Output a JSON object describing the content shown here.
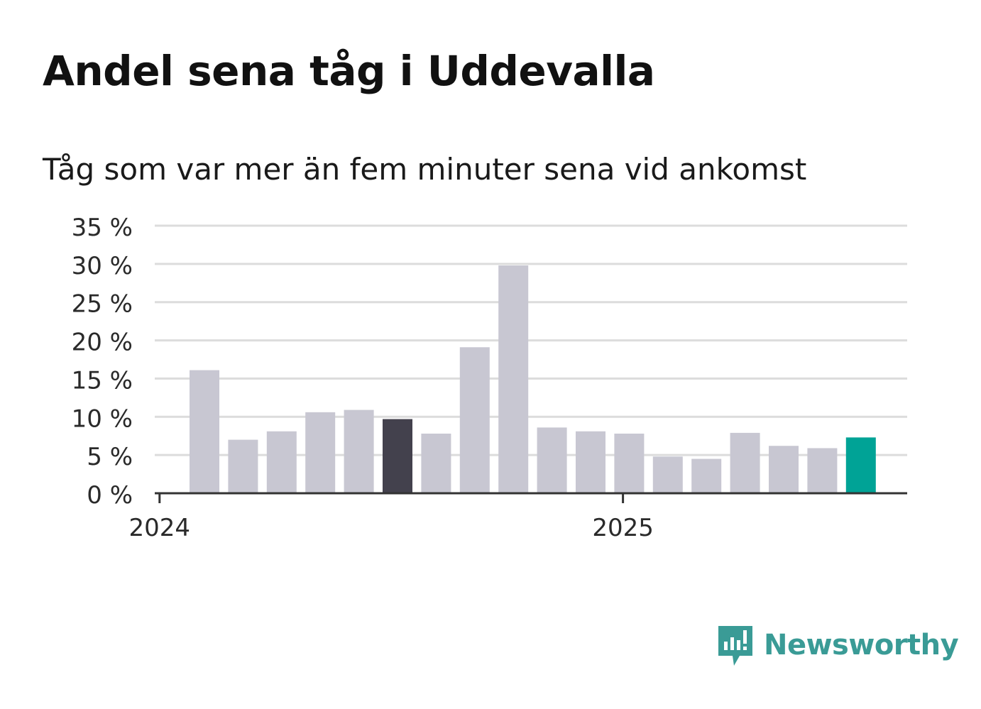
{
  "chart_data": {
    "type": "bar",
    "title": "Andel sena tåg i Uddevalla",
    "subtitle": "Tåg som var mer än fem minuter sena vid ankomst",
    "xlabel": "",
    "ylabel": "",
    "ylim": [
      0,
      35
    ],
    "y_ticks": [
      "0 %",
      "5 %",
      "10 %",
      "15 %",
      "20 %",
      "25 %",
      "30 %",
      "35 %"
    ],
    "y_tick_values": [
      0,
      5,
      10,
      15,
      20,
      25,
      30,
      35
    ],
    "x_ticks": [
      "2024",
      "2025"
    ],
    "grid": true,
    "categories": [
      "2024-01",
      "2024-02",
      "2024-03",
      "2024-04",
      "2024-05",
      "2024-06",
      "2024-07",
      "2024-08",
      "2024-09",
      "2024-10",
      "2024-11",
      "2024-12",
      "2025-01",
      "2025-02",
      "2025-03",
      "2025-04",
      "2025-05",
      "2025-06"
    ],
    "values": [
      16.1,
      7.0,
      8.1,
      10.6,
      10.9,
      9.7,
      7.8,
      19.1,
      29.8,
      8.6,
      8.1,
      7.8,
      4.8,
      4.5,
      7.9,
      6.2,
      5.9,
      7.3
    ],
    "colors": {
      "default": "#c8c7d2",
      "highlight": "#43414d",
      "latest": "#00a396",
      "grid": "#dcdcdc",
      "axis": "#333333"
    },
    "highlight_index": 5,
    "latest_index": 17
  },
  "brand": {
    "name": "Newsworthy",
    "icon": "newsworthy-logo-icon",
    "color": "#3a9b96"
  }
}
